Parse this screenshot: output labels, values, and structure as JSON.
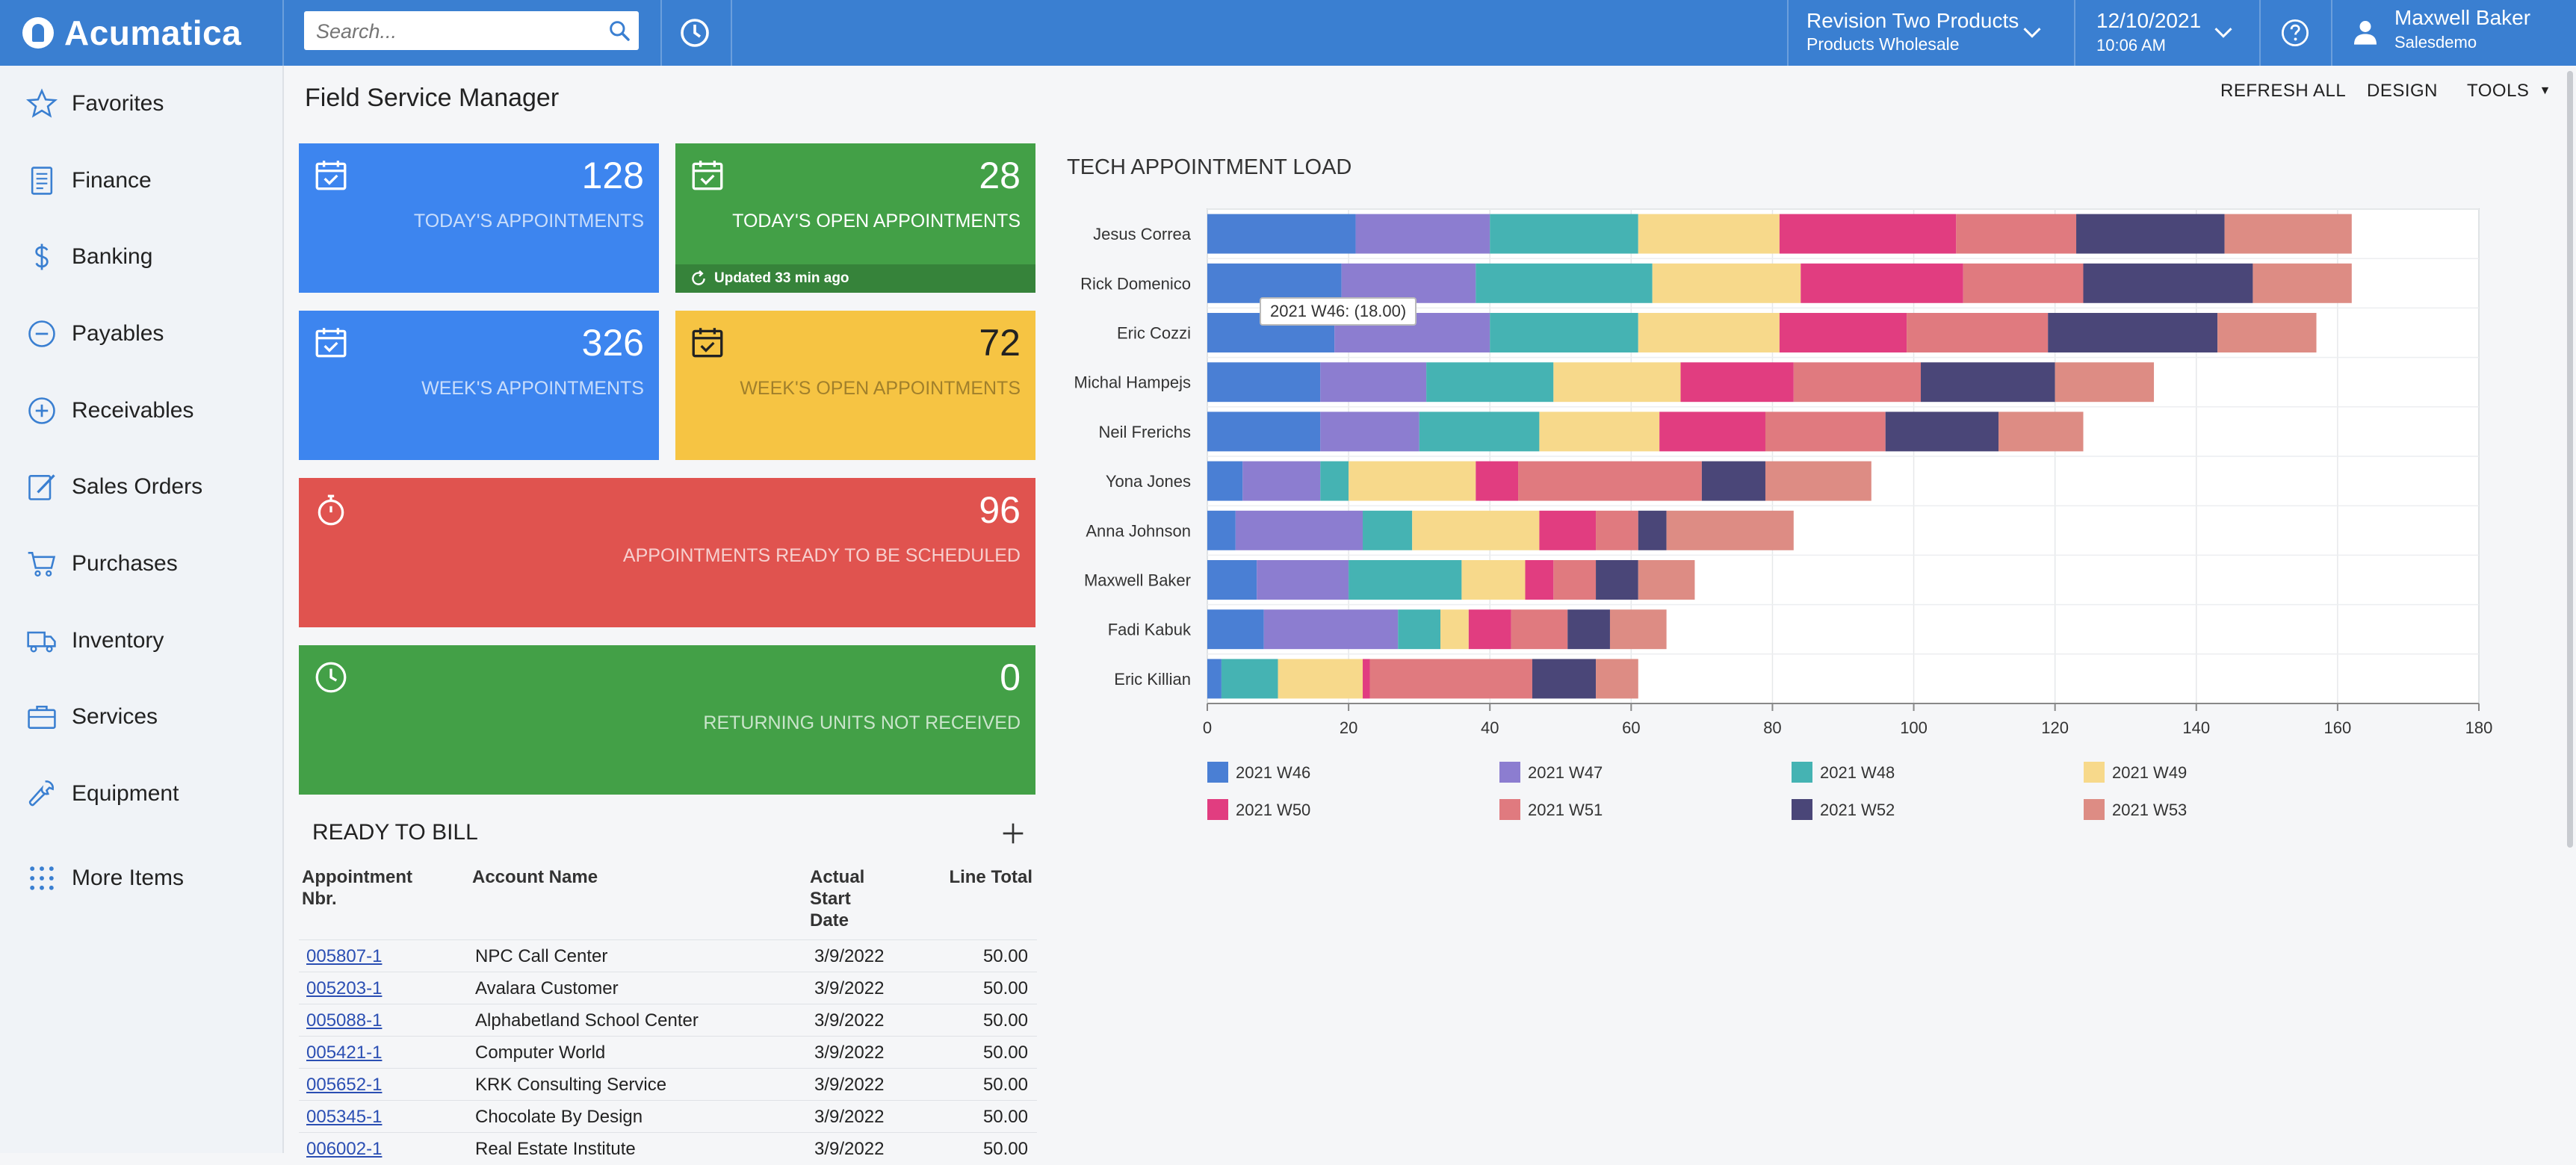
{
  "app": {
    "logo_text": "Acumatica"
  },
  "search": {
    "placeholder": "Search..."
  },
  "company": {
    "name": "Revision Two Products",
    "branch": "Products Wholesale"
  },
  "datetime": {
    "date": "12/10/2021",
    "time": "10:06 AM"
  },
  "user": {
    "name": "Maxwell Baker",
    "tenant": "Salesdemo"
  },
  "sidebar": {
    "items": [
      {
        "label": "Favorites",
        "icon": "star-icon"
      },
      {
        "label": "Finance",
        "icon": "ledger-icon"
      },
      {
        "label": "Banking",
        "icon": "dollar-icon"
      },
      {
        "label": "Payables",
        "icon": "minus-circle-icon"
      },
      {
        "label": "Receivables",
        "icon": "plus-circle-icon"
      },
      {
        "label": "Sales Orders",
        "icon": "pencil-icon"
      },
      {
        "label": "Purchases",
        "icon": "cart-icon"
      },
      {
        "label": "Inventory",
        "icon": "truck-icon"
      },
      {
        "label": "Services",
        "icon": "briefcase-icon"
      },
      {
        "label": "Equipment",
        "icon": "wrench-icon"
      },
      {
        "label": "More Items",
        "icon": "grid-dots-icon"
      }
    ]
  },
  "page": {
    "title": "Field Service Manager",
    "actions": {
      "refresh": "REFRESH ALL",
      "design": "DESIGN",
      "tools": "TOOLS"
    }
  },
  "tiles": [
    {
      "value": "128",
      "caption": "TODAY'S APPOINTMENTS",
      "color": "#3d85ef",
      "icon": "calendar-check-icon"
    },
    {
      "value": "28",
      "caption": "TODAY'S OPEN APPOINTMENTS",
      "color": "#43a047",
      "icon": "calendar-check-icon",
      "updated": "Updated 33 min ago"
    },
    {
      "value": "326",
      "caption": "WEEK'S APPOINTMENTS",
      "color": "#3d85ef",
      "icon": "calendar-check-icon"
    },
    {
      "value": "72",
      "caption": "WEEK'S OPEN APPOINTMENTS",
      "color": "#f6c443",
      "icon": "calendar-check-icon"
    },
    {
      "value": "96",
      "caption": "APPOINTMENTS READY TO BE SCHEDULED",
      "color": "#e0534f",
      "icon": "stopwatch-icon"
    },
    {
      "value": "0",
      "caption": "RETURNING UNITS NOT RECEIVED",
      "color": "#43a047",
      "icon": "clock-icon"
    }
  ],
  "ready_to_bill": {
    "title": "READY TO BILL",
    "columns": {
      "appointment": "Appointment Nbr.",
      "account": "Account Name",
      "start": "Actual Start Date",
      "total": "Line Total"
    },
    "rows": [
      {
        "appointment": "005807-1",
        "account": "NPC Call Center",
        "start": "3/9/2022",
        "total": "50.00"
      },
      {
        "appointment": "005203-1",
        "account": "Avalara Customer",
        "start": "3/9/2022",
        "total": "50.00"
      },
      {
        "appointment": "005088-1",
        "account": "Alphabetland School Center",
        "start": "3/9/2022",
        "total": "50.00"
      },
      {
        "appointment": "005421-1",
        "account": "Computer World",
        "start": "3/9/2022",
        "total": "50.00"
      },
      {
        "appointment": "005652-1",
        "account": "KRK Consulting Service",
        "start": "3/9/2022",
        "total": "50.00"
      },
      {
        "appointment": "005345-1",
        "account": "Chocolate By Design",
        "start": "3/9/2022",
        "total": "50.00"
      },
      {
        "appointment": "006002-1",
        "account": "Real Estate Institute",
        "start": "3/9/2022",
        "total": "50.00"
      }
    ]
  },
  "chart_data": {
    "type": "bar",
    "orientation": "horizontal",
    "stacked": true,
    "title": "TECH APPOINTMENT LOAD",
    "categories": [
      "Jesus Correa",
      "Rick Domenico",
      "Eric Cozzi",
      "Michal Hampejs",
      "Neil Frerichs",
      "Yona Jones",
      "Anna Johnson",
      "Maxwell Baker",
      "Fadi Kabuk",
      "Eric Killian"
    ],
    "xlim": [
      0,
      180
    ],
    "xticks": [
      0,
      20,
      40,
      60,
      80,
      100,
      120,
      140,
      160,
      180
    ],
    "grid": true,
    "legend_position": "bottom",
    "series": [
      {
        "name": "2021 W46",
        "color": "#4a7fd4",
        "values": [
          21,
          19,
          18,
          16,
          16,
          5,
          4,
          7,
          8,
          2
        ]
      },
      {
        "name": "2021 W47",
        "color": "#8c7dd0",
        "values": [
          19,
          19,
          22,
          15,
          14,
          11,
          18,
          13,
          19,
          0
        ]
      },
      {
        "name": "2021 W48",
        "color": "#45b3b3",
        "values": [
          21,
          25,
          21,
          18,
          17,
          4,
          7,
          16,
          6,
          8
        ]
      },
      {
        "name": "2021 W49",
        "color": "#f7d98b",
        "values": [
          20,
          21,
          20,
          18,
          17,
          18,
          18,
          9,
          4,
          12
        ]
      },
      {
        "name": "2021 W50",
        "color": "#e13d80",
        "values": [
          25,
          23,
          18,
          16,
          15,
          6,
          8,
          4,
          6,
          1
        ]
      },
      {
        "name": "2021 W51",
        "color": "#e07a7f",
        "values": [
          17,
          17,
          20,
          18,
          17,
          26,
          6,
          6,
          8,
          23
        ]
      },
      {
        "name": "2021 W52",
        "color": "#4a4678",
        "values": [
          21,
          24,
          24,
          19,
          16,
          9,
          4,
          6,
          6,
          9
        ]
      },
      {
        "name": "2021 W53",
        "color": "#dd8c84",
        "values": [
          18,
          14,
          14,
          14,
          12,
          15,
          18,
          8,
          8,
          6
        ]
      }
    ],
    "tooltip": "2021 W46: (18.00)"
  }
}
